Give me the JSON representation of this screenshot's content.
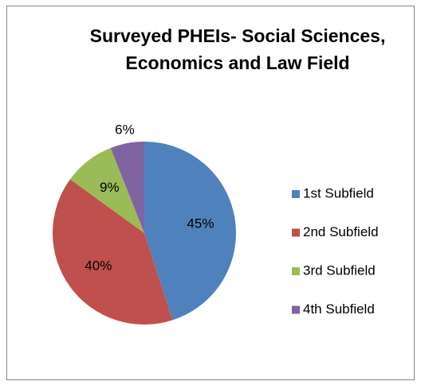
{
  "chart_data": {
    "type": "pie",
    "title": "Surveyed PHEIs- Social Sciences, Economics and Law Field",
    "categories": [
      "1st Subfield",
      "2nd Subfield",
      "3rd Subfield",
      "4th Subfield"
    ],
    "values": [
      45,
      40,
      9,
      6
    ],
    "value_labels": [
      "45%",
      "40%",
      "9%",
      "6%"
    ],
    "colors": [
      "#4f81bd",
      "#c0504d",
      "#9bbb59",
      "#8064a2"
    ],
    "legend": "right"
  }
}
